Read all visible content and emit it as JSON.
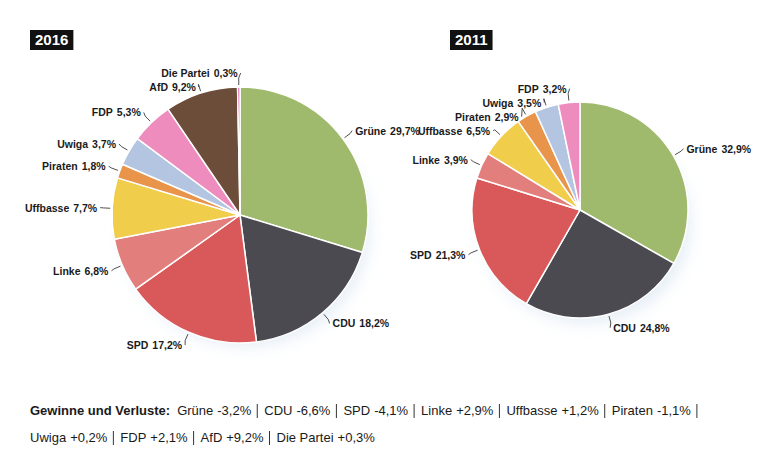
{
  "chart_data": [
    {
      "type": "pie",
      "title": "2016",
      "categories": [
        "Grüne",
        "CDU",
        "SPD",
        "Linke",
        "Uffbasse",
        "Piraten",
        "Uwiga",
        "FDP",
        "AfD",
        "Die Partei"
      ],
      "values": [
        29.7,
        18.2,
        17.2,
        6.8,
        7.7,
        1.8,
        3.7,
        5.3,
        9.2,
        0.3
      ],
      "value_labels": [
        "29,7%",
        "18,2%",
        "17,2%",
        "6,8%",
        "7,7%",
        "1,8%",
        "3,7%",
        "5,3%",
        "9,2%",
        "0,3%"
      ],
      "colors": [
        "#9fba6c",
        "#4b4a50",
        "#d9585a",
        "#e27f7c",
        "#f1cd4c",
        "#e8944a",
        "#b4c5e2",
        "#ee8dbd",
        "#6c4d39",
        "#d43e9e"
      ],
      "data_labels": true
    },
    {
      "type": "pie",
      "title": "2011",
      "categories": [
        "Grüne",
        "CDU",
        "SPD",
        "Linke",
        "Uffbasse",
        "Piraten",
        "Uwiga",
        "FDP"
      ],
      "values": [
        32.9,
        24.8,
        21.3,
        3.9,
        6.5,
        2.9,
        3.5,
        3.2
      ],
      "value_labels": [
        "32,9%",
        "24,8%",
        "21,3%",
        "3,9%",
        "6,5%",
        "2,9%",
        "3,5%",
        "3,2%"
      ],
      "colors": [
        "#9fba6c",
        "#4b4a50",
        "#d9585a",
        "#e27f7c",
        "#f1cd4c",
        "#e8944a",
        "#b4c5e2",
        "#ee8dbd"
      ],
      "data_labels": true
    }
  ],
  "footer": {
    "title": "Gewinne und Verluste:",
    "items": [
      {
        "label": "Grüne",
        "value": -3.2,
        "value_label": "-3,2%"
      },
      {
        "label": "CDU",
        "value": -6.6,
        "value_label": "-6,6%"
      },
      {
        "label": "SPD",
        "value": -4.1,
        "value_label": "-4,1%"
      },
      {
        "label": "Linke",
        "value": 2.9,
        "value_label": "+2,9%"
      },
      {
        "label": "Uffbasse",
        "value": 1.2,
        "value_label": "+1,2%"
      },
      {
        "label": "Piraten",
        "value": -1.1,
        "value_label": "-1,1%"
      },
      {
        "label": "Uwiga",
        "value": 0.2,
        "value_label": "+0,2%"
      },
      {
        "label": "FDP",
        "value": 2.1,
        "value_label": "+2,1%"
      },
      {
        "label": "AfD",
        "value": 9.2,
        "value_label": "+9,2%"
      },
      {
        "label": "Die Partei",
        "value": 0.3,
        "value_label": "+0,3%"
      }
    ]
  }
}
